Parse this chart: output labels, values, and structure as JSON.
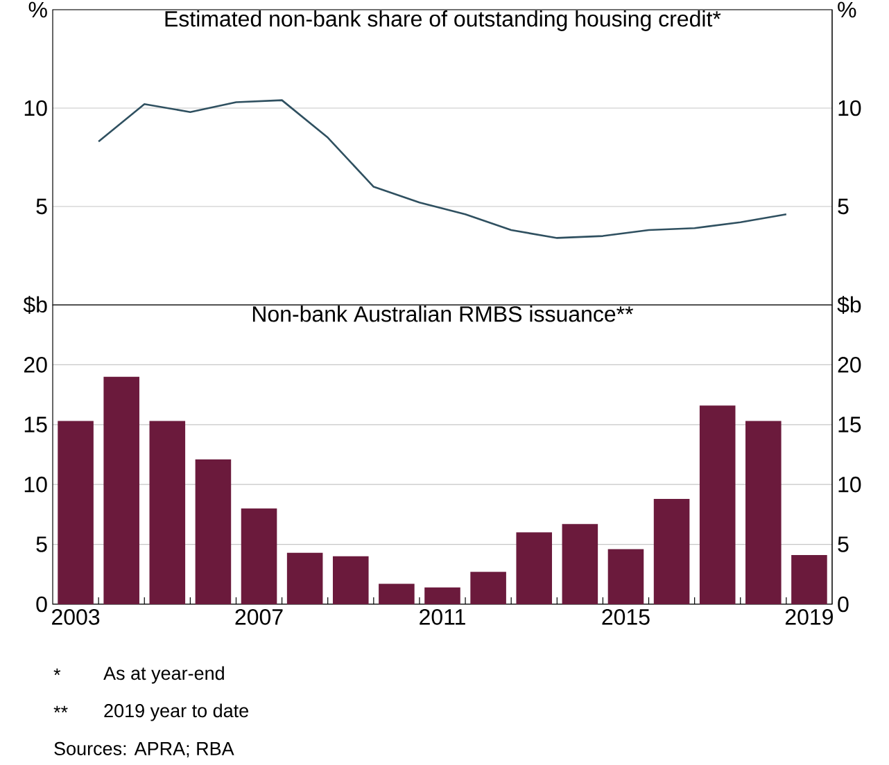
{
  "chart_data": [
    {
      "type": "line",
      "title": "Estimated non-bank share of outstanding housing credit*",
      "x": [
        2003.5,
        2004.5,
        2005.5,
        2006.5,
        2007.5,
        2008.5,
        2009.5,
        2010.5,
        2011.5,
        2012.5,
        2013.5,
        2014.5,
        2015.5,
        2016.5,
        2017.5,
        2018.5
      ],
      "values": [
        8.3,
        10.2,
        9.8,
        10.3,
        10.4,
        8.5,
        6.0,
        5.2,
        4.6,
        3.8,
        3.4,
        3.5,
        3.8,
        3.9,
        4.2,
        4.6
      ],
      "color": "#2f5060",
      "xlim": [
        2002.5,
        2019.5
      ],
      "ylim": [
        0,
        15
      ],
      "yticks": [
        5,
        10,
        {
          "value": 15,
          "label": "%"
        }
      ],
      "y2lim": [
        0,
        15
      ],
      "y2ticks": [
        5,
        10,
        {
          "value": 15,
          "label": "%"
        }
      ],
      "grid": "y",
      "tick_labels": "y"
    },
    {
      "type": "bar",
      "title": "Non-bank Australian RMBS issuance**",
      "x": [
        2003,
        2004,
        2005,
        2006,
        2007,
        2008,
        2009,
        2010,
        2011,
        2012,
        2013,
        2014,
        2015,
        2016,
        2017,
        2018,
        2019
      ],
      "values": [
        15.3,
        19.0,
        15.3,
        12.1,
        8.0,
        4.3,
        4.0,
        1.7,
        1.4,
        2.7,
        6.0,
        6.7,
        4.6,
        8.8,
        16.6,
        15.3,
        4.1
      ],
      "color": "#6b1a3c",
      "xlim": [
        2002.5,
        2019.5
      ],
      "xticks": [
        2003,
        {
          "value": 2003.5,
          "label": null
        },
        {
          "value": 2004.5,
          "label": null
        },
        {
          "value": 2005.5,
          "label": null
        },
        {
          "value": 2006.5,
          "label": null
        },
        2007,
        {
          "value": 2007.5,
          "label": null
        },
        {
          "value": 2008.5,
          "label": null
        },
        {
          "value": 2009.5,
          "label": null
        },
        {
          "value": 2010.5,
          "label": null
        },
        2011,
        {
          "value": 2011.5,
          "label": null
        },
        {
          "value": 2012.5,
          "label": null
        },
        {
          "value": 2013.5,
          "label": null
        },
        {
          "value": 2014.5,
          "label": null
        },
        2015,
        {
          "value": 2015.5,
          "label": null
        },
        {
          "value": 2016.5,
          "label": null
        },
        {
          "value": 2017.5,
          "label": null
        },
        {
          "value": 2018.5,
          "label": null
        },
        2019
      ],
      "ylim": [
        0,
        25
      ],
      "yticks": [
        0,
        5,
        10,
        15,
        20,
        {
          "value": 25,
          "label": "$b"
        }
      ],
      "y2lim": [
        0,
        25
      ],
      "y2ticks": [
        0,
        5,
        10,
        15,
        20,
        {
          "value": 25,
          "label": "$b"
        }
      ],
      "grid": "y",
      "annotations": [
        "*",
        "As at year-end",
        "**",
        "2019 year to date",
        "Sources: APRA; RBA"
      ]
    }
  ]
}
